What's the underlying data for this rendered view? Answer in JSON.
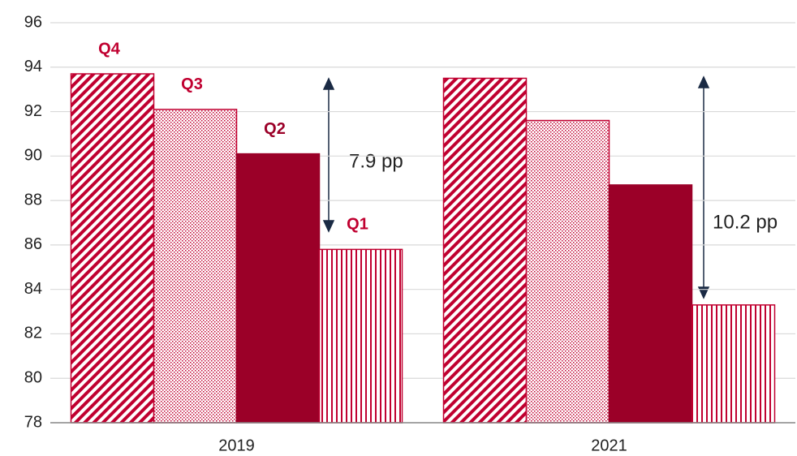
{
  "chart_data": {
    "type": "bar",
    "categories": [
      "2019",
      "2021"
    ],
    "series": [
      {
        "name": "Q4",
        "color": "#c00030",
        "pattern": "diagonal",
        "values": [
          93.7,
          93.5
        ]
      },
      {
        "name": "Q3",
        "color": "#c00030",
        "pattern": "dots",
        "values": [
          92.1,
          91.6
        ]
      },
      {
        "name": "Q2",
        "color": "#9b0028",
        "pattern": "solid",
        "values": [
          90.1,
          88.7
        ]
      },
      {
        "name": "Q1",
        "color": "#c00030",
        "pattern": "vertical",
        "values": [
          85.8,
          83.3
        ]
      }
    ],
    "annotations": [
      "7.9 pp",
      "10.2 pp"
    ],
    "ylim": [
      78,
      96
    ],
    "yticks": [
      78,
      80,
      82,
      84,
      86,
      88,
      90,
      92,
      94,
      96
    ],
    "grid": true
  }
}
